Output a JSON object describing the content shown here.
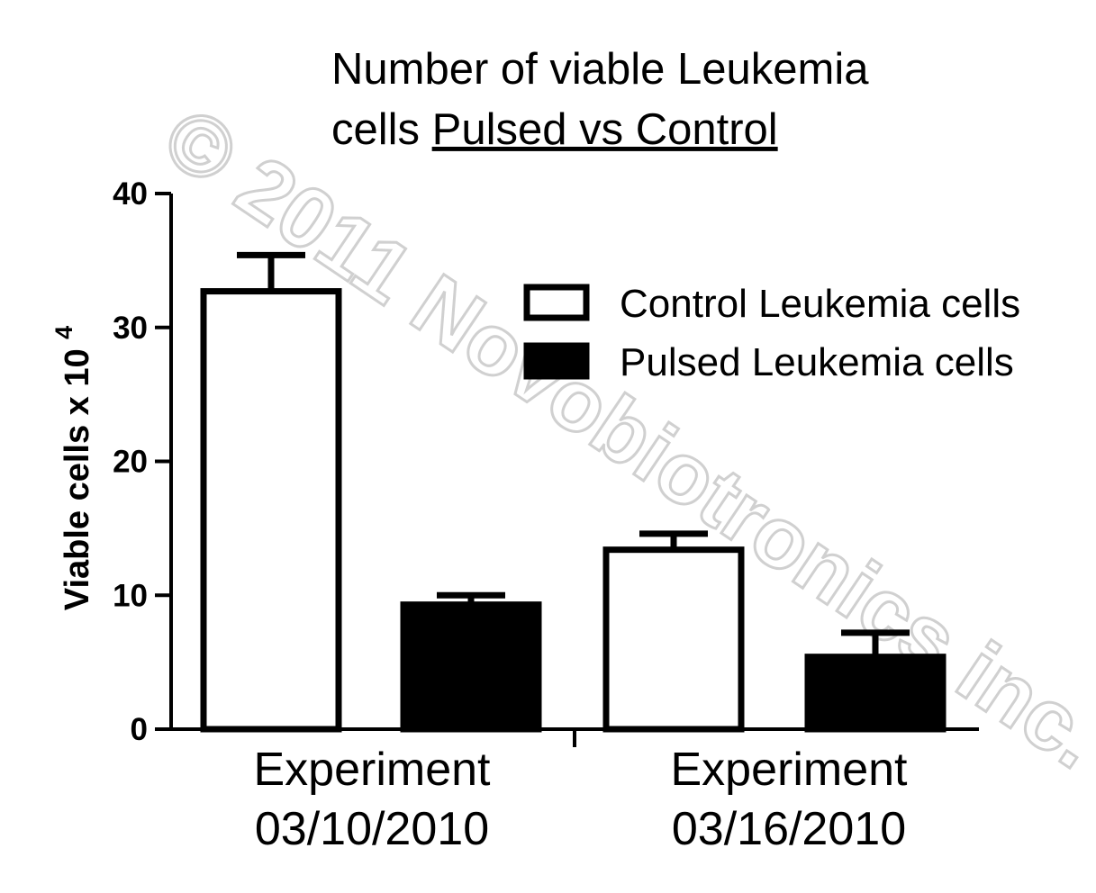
{
  "chart_data": {
    "type": "bar",
    "title_lines": [
      "Number of viable Leukemia",
      "cells Pulsed vs Control"
    ],
    "title_underlined": "Pulsed vs Control",
    "ylabel": "Viable cells x 10",
    "ylabel_superscript": "4",
    "ylim": [
      0,
      40
    ],
    "yticks": [
      0,
      10,
      20,
      30,
      40
    ],
    "categories": [
      [
        "Experiment",
        "03/10/2010"
      ],
      [
        "Experiment",
        "03/16/2010"
      ]
    ],
    "series": [
      {
        "name": "Control Leukemia cells",
        "fill": "#ffffff",
        "values": [
          32.7,
          13.4
        ],
        "errors": [
          2.7,
          1.2
        ]
      },
      {
        "name": "Pulsed Leukemia cells",
        "fill": "#000000",
        "values": [
          9.3,
          5.4
        ],
        "errors": [
          0.7,
          1.8
        ]
      }
    ],
    "legend_position": "top-right",
    "grid": false
  },
  "watermark": {
    "text": "© 2011 Novobiotronics inc.",
    "color": "#c8c8c8"
  }
}
